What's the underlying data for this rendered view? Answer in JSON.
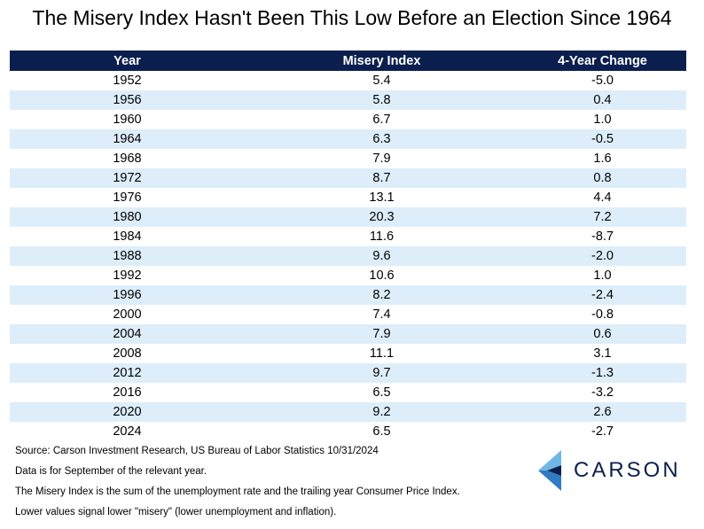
{
  "title": "The Misery Index Hasn't Been This Low Before an Election Since 1964",
  "chart_data": {
    "type": "table",
    "title": "The Misery Index Hasn't Been This Low Before an Election Since 1964",
    "columns": [
      "Year",
      "Misery Index",
      "4-Year Change"
    ],
    "rows": [
      [
        "1952",
        "5.4",
        "-5.0"
      ],
      [
        "1956",
        "5.8",
        "0.4"
      ],
      [
        "1960",
        "6.7",
        "1.0"
      ],
      [
        "1964",
        "6.3",
        "-0.5"
      ],
      [
        "1968",
        "7.9",
        "1.6"
      ],
      [
        "1972",
        "8.7",
        "0.8"
      ],
      [
        "1976",
        "13.1",
        "4.4"
      ],
      [
        "1980",
        "20.3",
        "7.2"
      ],
      [
        "1984",
        "11.6",
        "-8.7"
      ],
      [
        "1988",
        "9.6",
        "-2.0"
      ],
      [
        "1992",
        "10.6",
        "1.0"
      ],
      [
        "1996",
        "8.2",
        "-2.4"
      ],
      [
        "2000",
        "7.4",
        "-0.8"
      ],
      [
        "2004",
        "7.9",
        "0.6"
      ],
      [
        "2008",
        "11.1",
        "3.1"
      ],
      [
        "2012",
        "9.7",
        "-1.3"
      ],
      [
        "2016",
        "6.5",
        "-3.2"
      ],
      [
        "2020",
        "9.2",
        "2.6"
      ],
      [
        "2024",
        "6.5",
        "-2.7"
      ]
    ]
  },
  "notes": [
    "Source: Carson Investment Research, US Bureau of Labor Statistics 10/31/2024",
    "Data is for September of the relevant year.",
    "The Misery Index is the sum of the unemployment rate and the trailing year Consumer Price Index.",
    "Lower values signal lower \"misery\" (lower unemployment and inflation)."
  ],
  "logo": {
    "text": "CARSON",
    "icon": "carson-chevron-logo-icon",
    "colors": {
      "light": "#6fb8e6",
      "mid": "#2f7cc2",
      "dark": "#0b1f4e"
    }
  },
  "colors": {
    "header_background": "#0b1f4e",
    "header_text": "#ffffff",
    "stripe": "#ddeefa"
  }
}
